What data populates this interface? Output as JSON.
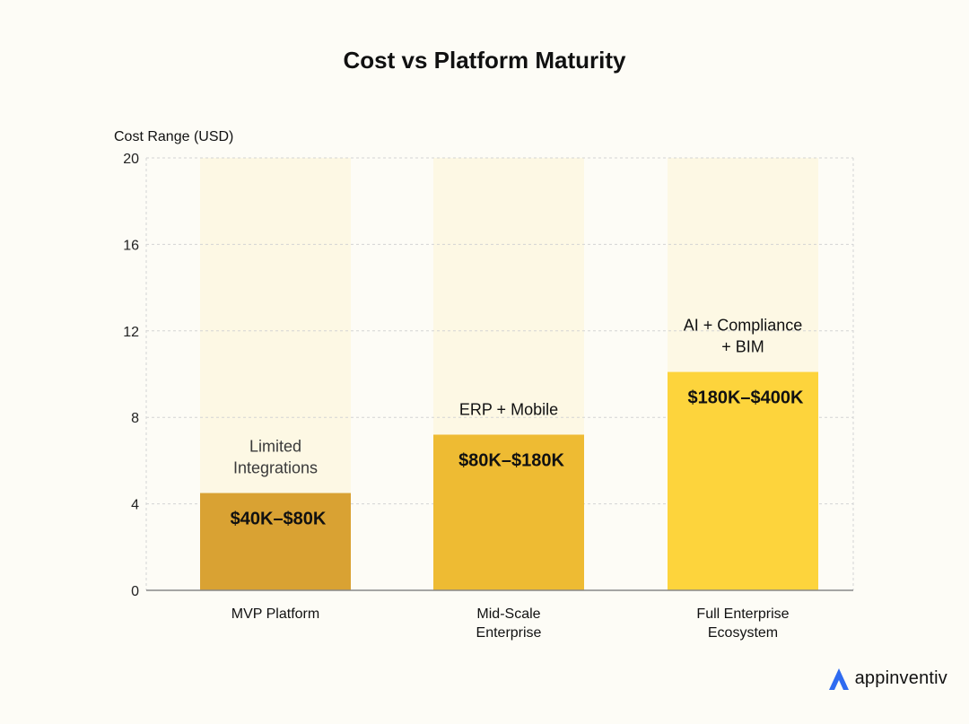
{
  "chart_data": {
    "type": "bar",
    "title": "Cost vs Platform Maturity",
    "ylabel": "Cost Range (USD)",
    "xlabel": "",
    "ylim": [
      0,
      20
    ],
    "yticks": [
      "0",
      "4",
      "8",
      "12",
      "16",
      "20"
    ],
    "grid": true,
    "categories": [
      [
        "MVP Platform"
      ],
      [
        "Mid-Scale",
        "Enterprise"
      ],
      [
        "Full Enterprise",
        "Ecosystem"
      ]
    ],
    "values": [
      4.5,
      7.2,
      10.1
    ],
    "background_max": [
      20,
      20,
      20
    ],
    "value_labels": [
      "$40K–$80K",
      "$80K–$180K",
      "$180K–$400K"
    ],
    "annotations": [
      [
        "Limited",
        "Integrations"
      ],
      [
        "ERP + Mobile"
      ],
      [
        "AI + Compliance",
        "+ BIM"
      ]
    ],
    "colors": [
      "#d9a233",
      "#eebb33",
      "#fdd43c"
    ],
    "background_color": "#fdf8e4"
  },
  "logo": {
    "text": "appinventiv",
    "color": "#2f6bf0"
  }
}
